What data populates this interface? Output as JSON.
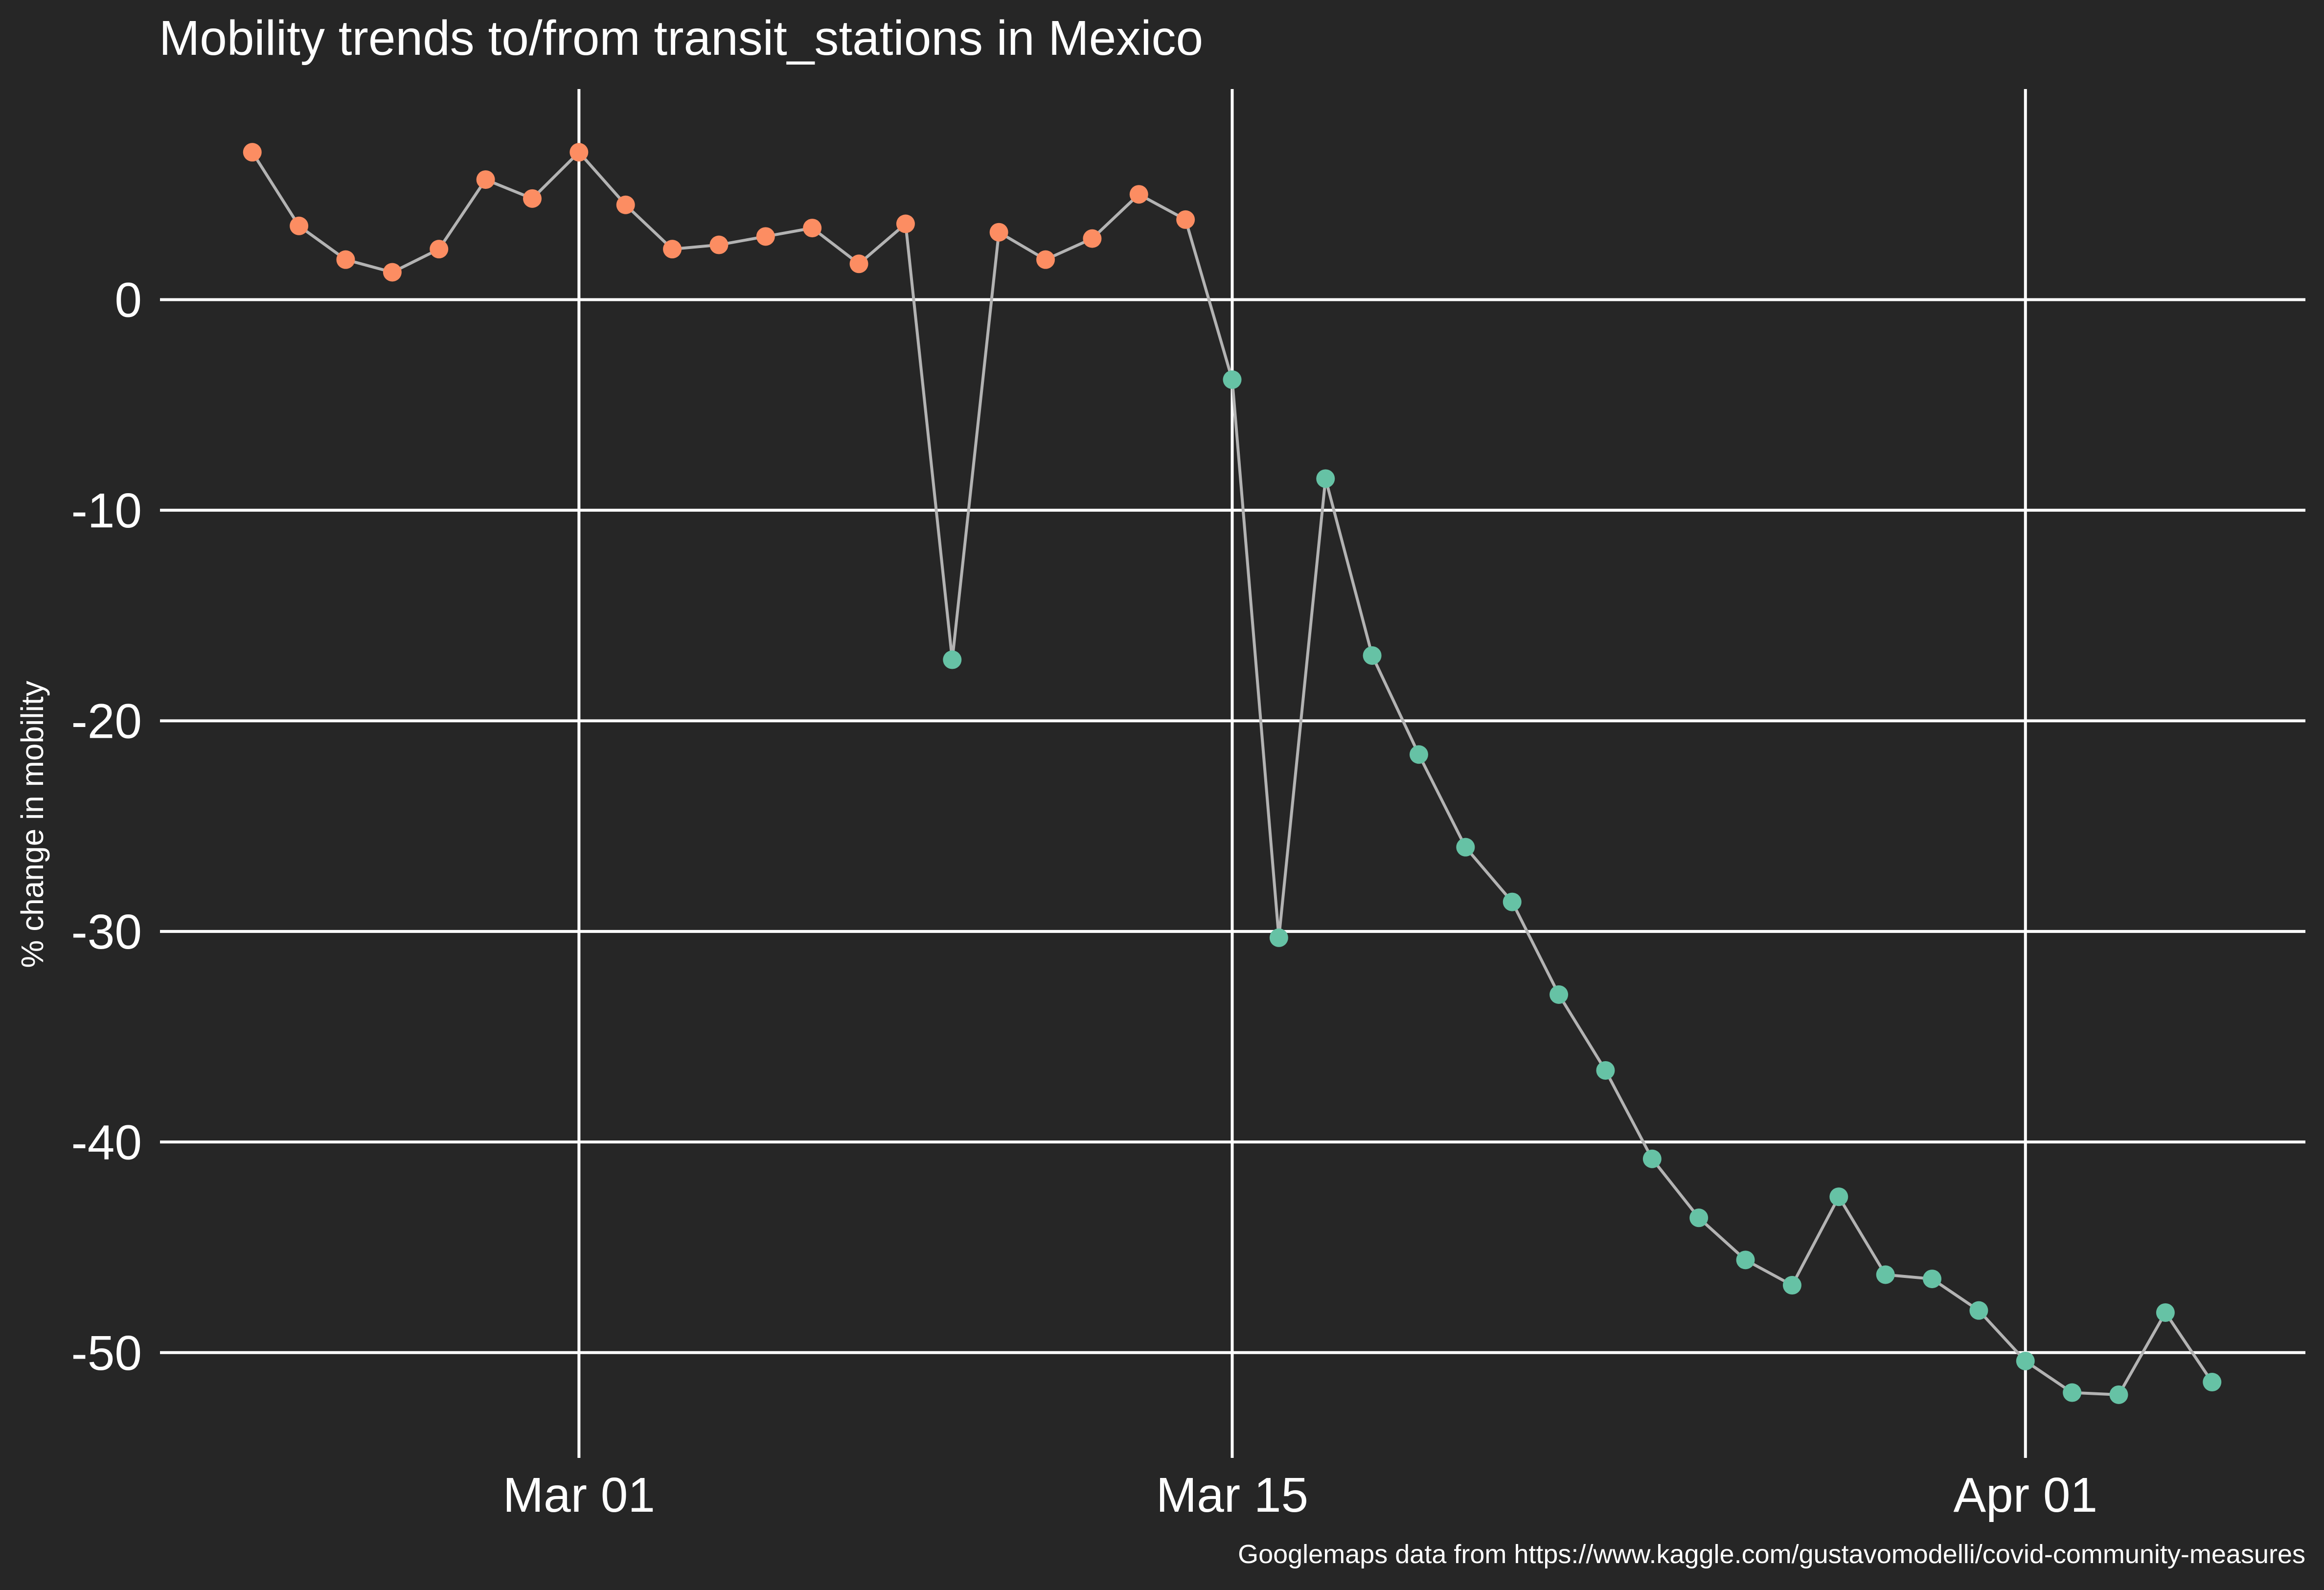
{
  "chart_data": {
    "type": "scatter",
    "title": "Mobility trends to/from transit_stations in Mexico",
    "xlabel": "",
    "ylabel": "% change in mobility",
    "caption": "Googlemaps data from https://www.kaggle.com/gustavomodelli/covid-community-measures",
    "x_ticks": [
      "Mar 01",
      "Mar 15",
      "Apr 01"
    ],
    "y_ticks": [
      0,
      -10,
      -20,
      -30,
      -40,
      -50
    ],
    "xlim": [
      "2020-02-21",
      "2020-04-07"
    ],
    "ylim": [
      -55,
      10
    ],
    "grid": true,
    "legend": "none",
    "colors": {
      "background": "#262626",
      "line": "#b3b3b3",
      "positive": "#fc8d62",
      "negative": "#66c2a5"
    },
    "series": [
      {
        "x": [
          "2020-02-23",
          "2020-02-24",
          "2020-02-25",
          "2020-02-26",
          "2020-02-27",
          "2020-02-28",
          "2020-02-29",
          "2020-03-01",
          "2020-03-02",
          "2020-03-03",
          "2020-03-04",
          "2020-03-05",
          "2020-03-06",
          "2020-03-07",
          "2020-03-08",
          "2020-03-09",
          "2020-03-10",
          "2020-03-11",
          "2020-03-12",
          "2020-03-13",
          "2020-03-14",
          "2020-03-15",
          "2020-03-16",
          "2020-03-17",
          "2020-03-18",
          "2020-03-19",
          "2020-03-20",
          "2020-03-21",
          "2020-03-22",
          "2020-03-23",
          "2020-03-24",
          "2020-03-25",
          "2020-03-26",
          "2020-03-27",
          "2020-03-28",
          "2020-03-29",
          "2020-03-30",
          "2020-03-31",
          "2020-04-01",
          "2020-04-02",
          "2020-04-03",
          "2020-04-04",
          "2020-04-05"
        ],
        "y": [
          7,
          3.5,
          1.9,
          1.3,
          2.4,
          5.7,
          4.8,
          7,
          4.5,
          2.4,
          2.6,
          3,
          3.4,
          1.7,
          3.6,
          -17.1,
          3.2,
          1.9,
          2.9,
          5,
          3.8,
          -3.8,
          -30.3,
          -8.5,
          -16.9,
          -21.6,
          -26,
          -28.6,
          -33,
          -36.6,
          -40.8,
          -43.6,
          -45.6,
          -46.8,
          -42.6,
          -46.3,
          -46.5,
          -48,
          -50.4,
          -51.9,
          -52,
          -48.1,
          -51.4
        ]
      }
    ]
  }
}
